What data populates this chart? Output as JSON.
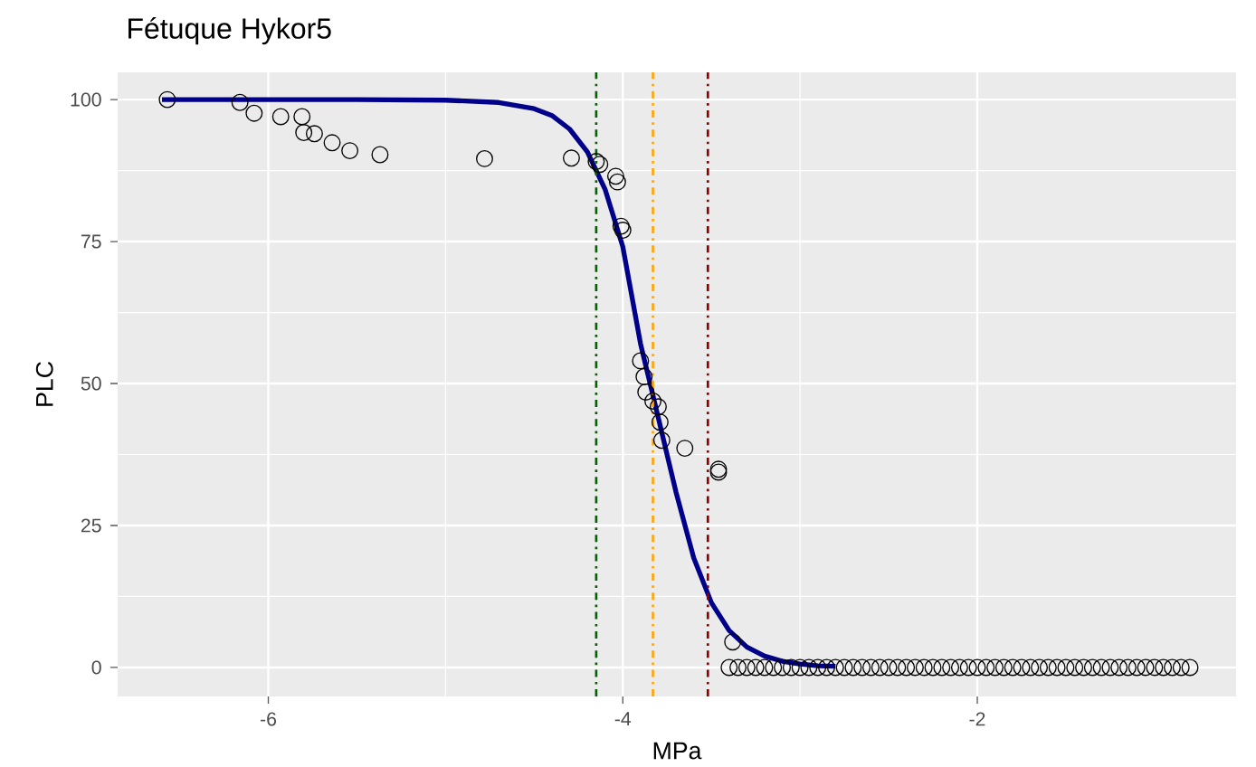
{
  "chart_data": {
    "type": "scatter",
    "title": "Fétuque Hykor5",
    "xlabel": "MPa",
    "ylabel": "PLC",
    "xlim": [
      -6.85,
      -0.54
    ],
    "ylim": [
      -5.1,
      104.8
    ],
    "xticks": [
      -6,
      -4,
      -2
    ],
    "yticks": [
      0,
      25,
      50,
      75,
      100
    ],
    "grid": true,
    "series": [
      {
        "type": "line",
        "color": "#00008b",
        "marker": "none",
        "x": [
          -6.6,
          -5.5,
          -5.0,
          -4.7,
          -4.5,
          -4.4,
          -4.3,
          -4.2,
          -4.1,
          -4.0,
          -3.9,
          -3.8,
          -3.7,
          -3.6,
          -3.5,
          -3.4,
          -3.3,
          -3.2,
          -3.1,
          -3.0,
          -2.9,
          -2.8
        ],
        "values": [
          100,
          100,
          99.9,
          99.5,
          98.4,
          97.2,
          94.8,
          90.8,
          84.2,
          74.1,
          57,
          44,
          30.9,
          19.3,
          11.4,
          6.5,
          3.6,
          2.0,
          1.1,
          0.6,
          0.3,
          0.2
        ]
      },
      {
        "color": "#000000",
        "marker": "circle",
        "x": [
          -6.57,
          -6.16,
          -6.08,
          -5.93,
          -5.81,
          -5.8,
          -5.74,
          -5.64,
          -5.54,
          -5.37,
          -4.78,
          -4.29,
          -4.15,
          -4.13,
          -4.04,
          -4.03,
          -4.01,
          -4.0,
          -3.9,
          -3.88,
          -3.87,
          -3.83,
          -3.8,
          -3.79,
          -3.78,
          -3.65,
          -3.46,
          -3.46,
          -3.38,
          -3.4,
          -3.35,
          -3.3,
          -3.25,
          -3.2,
          -3.15,
          -3.1,
          -3.05,
          -3.0,
          -2.95,
          -2.9,
          -2.85,
          -2.8,
          -2.75,
          -2.7,
          -2.65,
          -2.6,
          -2.55,
          -2.5,
          -2.45,
          -2.4,
          -2.35,
          -2.3,
          -2.25,
          -2.2,
          -2.15,
          -2.1,
          -2.05,
          -2.0,
          -1.95,
          -1.9,
          -1.85,
          -1.8,
          -1.75,
          -1.7,
          -1.65,
          -1.6,
          -1.55,
          -1.5,
          -1.45,
          -1.4,
          -1.35,
          -1.3,
          -1.25,
          -1.2,
          -1.15,
          -1.1,
          -1.05,
          -1.0,
          -0.95,
          -0.9,
          -0.85,
          -0.8
        ],
        "values": [
          100,
          99.5,
          97.6,
          97,
          97,
          94.2,
          94,
          92.4,
          91,
          90.3,
          89.6,
          89.7,
          89.1,
          88.6,
          86.5,
          85.5,
          77.7,
          77,
          54,
          51.2,
          48.5,
          46.9,
          45.9,
          43.2,
          40,
          38.6,
          34.9,
          34.4,
          4.5,
          0,
          0,
          0,
          0,
          0,
          0,
          0,
          0,
          0,
          0,
          0,
          0,
          0,
          0,
          0,
          0,
          0,
          0,
          0,
          0,
          0,
          0,
          0,
          0,
          0,
          0,
          0,
          0,
          0,
          0,
          0,
          0,
          0,
          0,
          0,
          0,
          0,
          0,
          0,
          0,
          0,
          0,
          0,
          0,
          0,
          0,
          0,
          0,
          0,
          0,
          0,
          0,
          0
        ]
      }
    ],
    "ref_lines": [
      {
        "axis": "x",
        "value": -4.15,
        "color": "#006400",
        "line_style": "dashdot"
      },
      {
        "axis": "x",
        "value": -3.83,
        "color": "#ffa500",
        "line_style": "dashdot"
      },
      {
        "axis": "x",
        "value": -3.52,
        "color": "#8b0000",
        "line_style": "dashdot"
      }
    ]
  }
}
